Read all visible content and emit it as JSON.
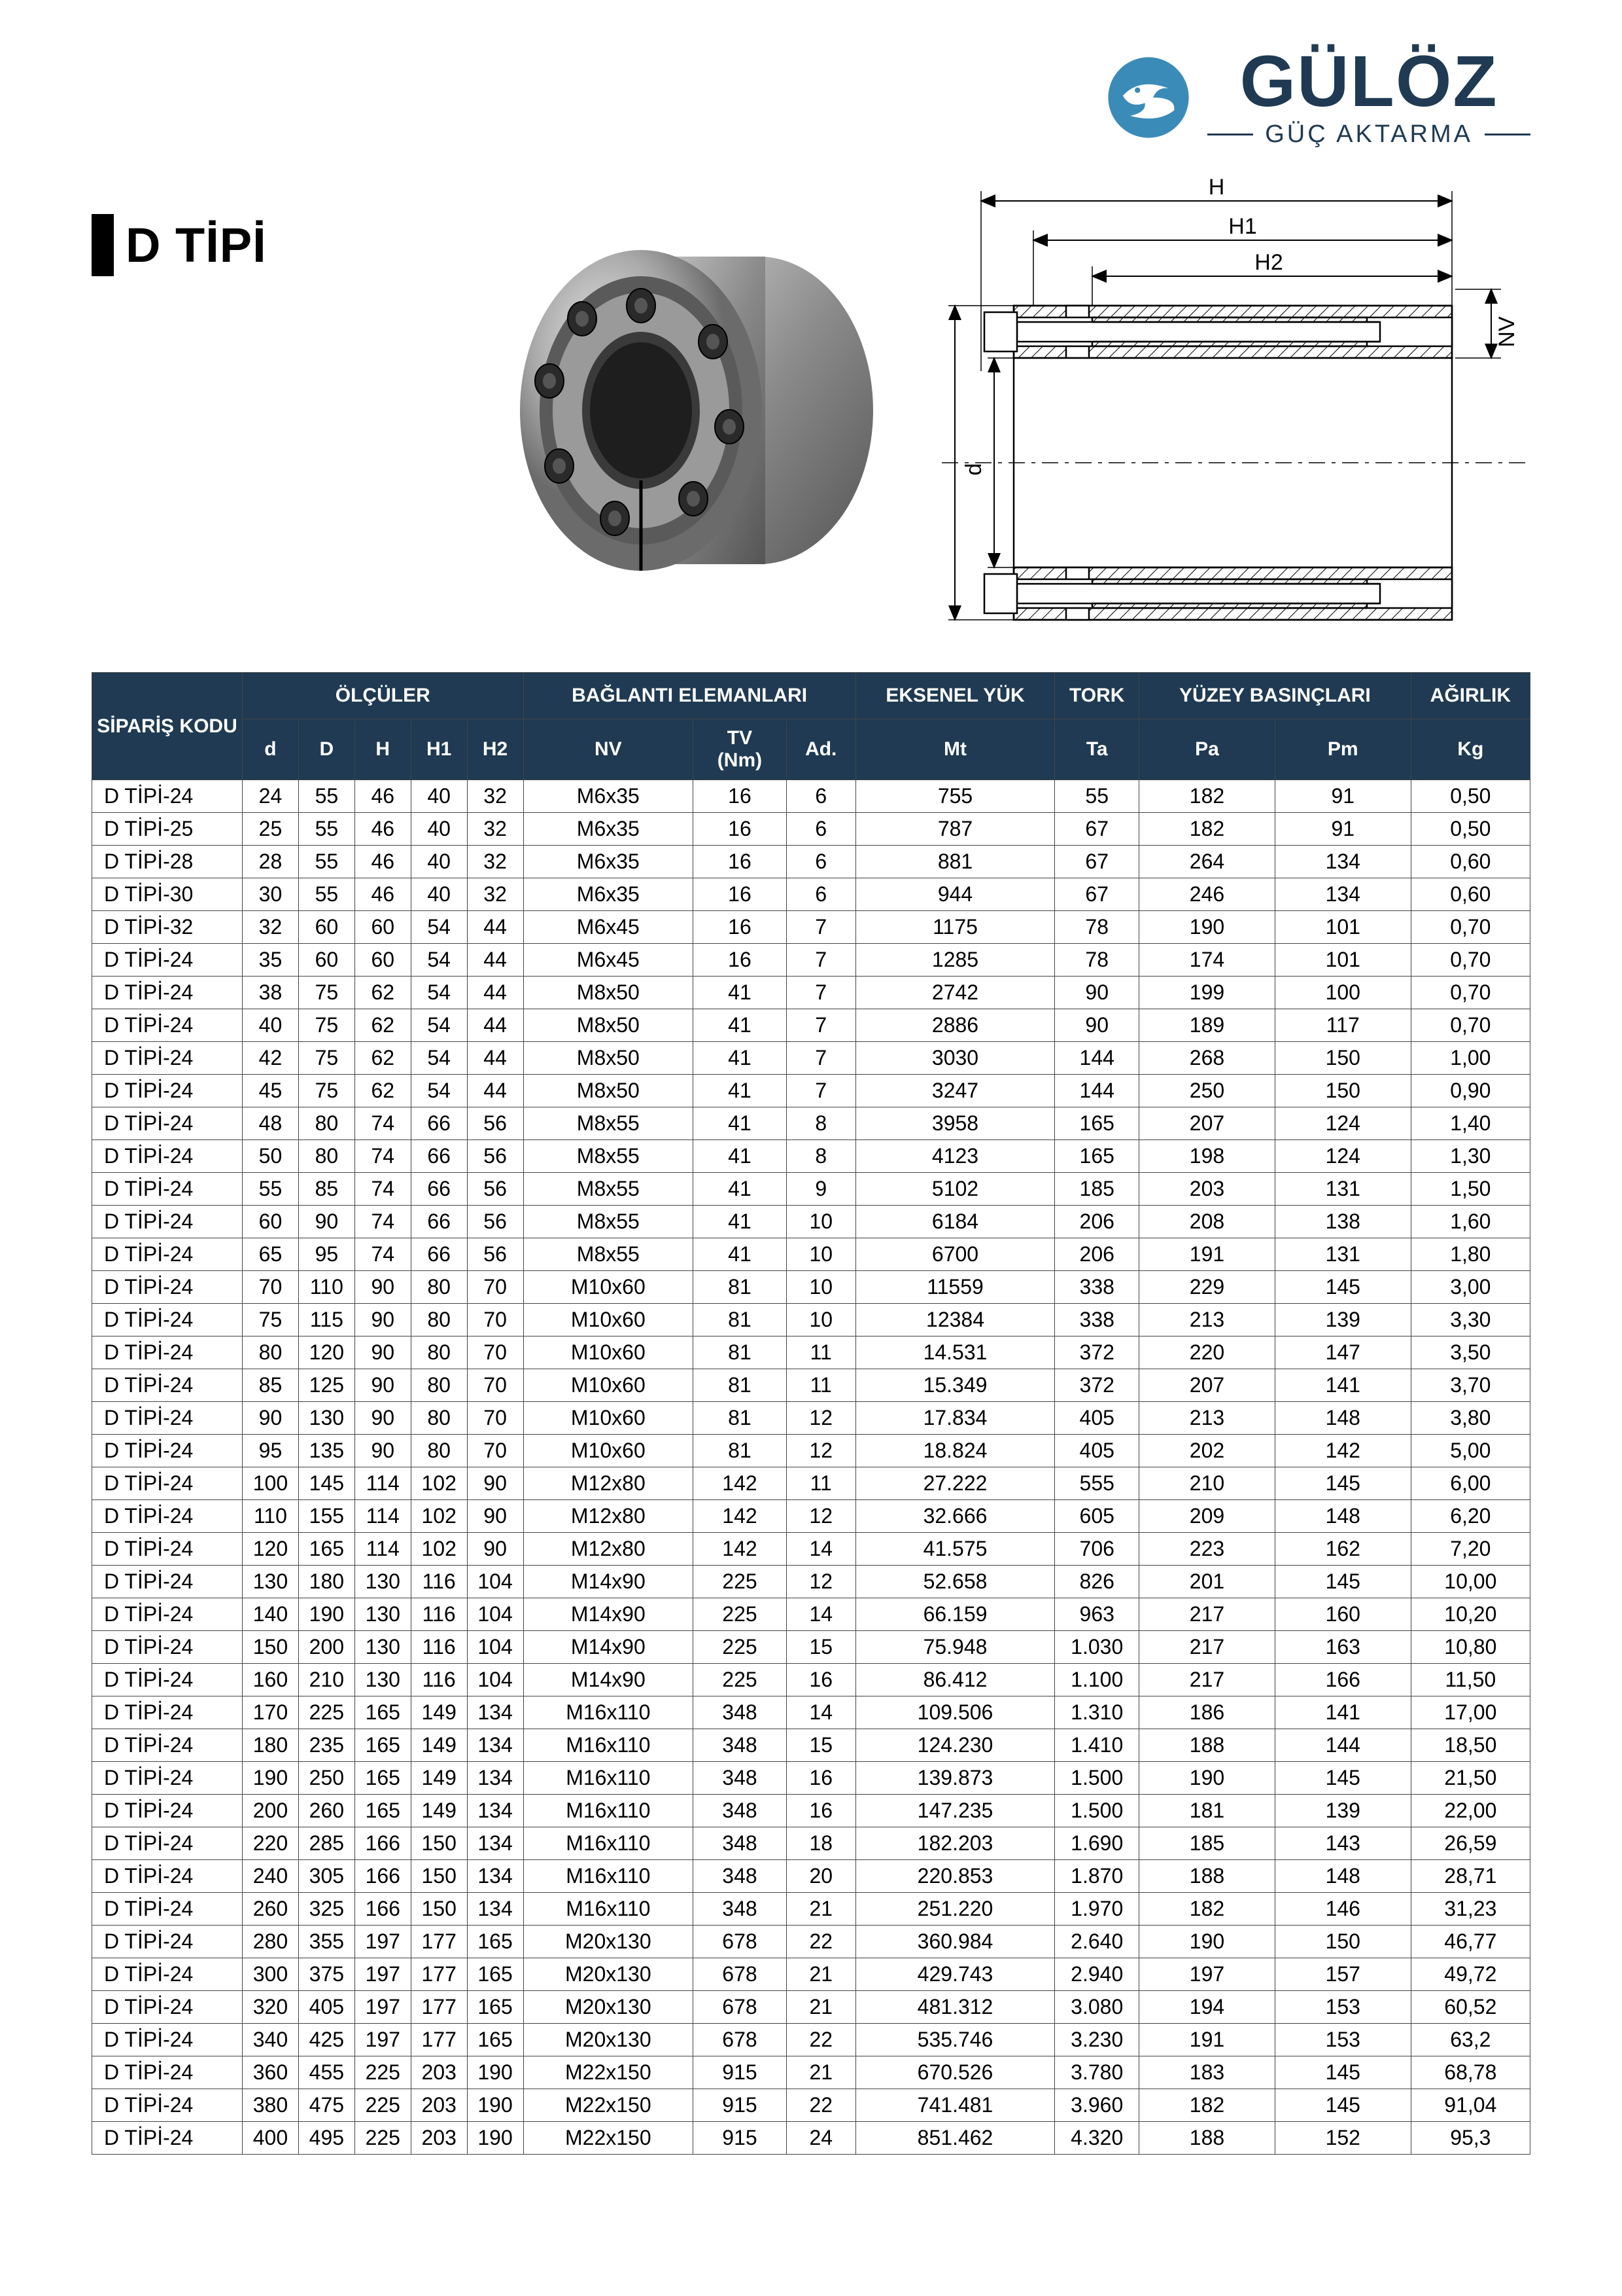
{
  "logo": {
    "brand": "GÜLÖZ",
    "tagline": "GÜÇ AKTARMA",
    "icon_color": "#3b8bb8",
    "text_color": "#1f3a52"
  },
  "title": "D TİPİ",
  "diagram_labels": {
    "H": "H",
    "H1": "H1",
    "H2": "H2",
    "D": "D",
    "d": "d",
    "NV": "NV"
  },
  "table": {
    "header_bg": "#1f3a52",
    "header_fg": "#ffffff",
    "groups": [
      {
        "label": "SİPARİŞ KODU",
        "span": 1
      },
      {
        "label": "ÖLÇÜLER",
        "span": 5
      },
      {
        "label": "BAĞLANTI ELEMANLARI",
        "span": 3
      },
      {
        "label": "EKSENEL YÜK",
        "span": 1
      },
      {
        "label": "TORK",
        "span": 1
      },
      {
        "label": "YÜZEY BASINÇLARI",
        "span": 2
      },
      {
        "label": "AĞIRLIK",
        "span": 1
      }
    ],
    "columns": [
      "d",
      "D",
      "H",
      "H1",
      "H2",
      "NV",
      "TV (Nm)",
      "Ad.",
      "Mt",
      "Ta",
      "Pa",
      "Pm",
      "Kg"
    ],
    "rows": [
      [
        "D TİPİ-24",
        "24",
        "55",
        "46",
        "40",
        "32",
        "M6x35",
        "16",
        "6",
        "755",
        "55",
        "182",
        "91",
        "0,50"
      ],
      [
        "D TİPİ-25",
        "25",
        "55",
        "46",
        "40",
        "32",
        "M6x35",
        "16",
        "6",
        "787",
        "67",
        "182",
        "91",
        "0,50"
      ],
      [
        "D TİPİ-28",
        "28",
        "55",
        "46",
        "40",
        "32",
        "M6x35",
        "16",
        "6",
        "881",
        "67",
        "264",
        "134",
        "0,60"
      ],
      [
        "D TİPİ-30",
        "30",
        "55",
        "46",
        "40",
        "32",
        "M6x35",
        "16",
        "6",
        "944",
        "67",
        "246",
        "134",
        "0,60"
      ],
      [
        "D TİPİ-32",
        "32",
        "60",
        "60",
        "54",
        "44",
        "M6x45",
        "16",
        "7",
        "1175",
        "78",
        "190",
        "101",
        "0,70"
      ],
      [
        "D TİPİ-24",
        "35",
        "60",
        "60",
        "54",
        "44",
        "M6x45",
        "16",
        "7",
        "1285",
        "78",
        "174",
        "101",
        "0,70"
      ],
      [
        "D TİPİ-24",
        "38",
        "75",
        "62",
        "54",
        "44",
        "M8x50",
        "41",
        "7",
        "2742",
        "90",
        "199",
        "100",
        "0,70"
      ],
      [
        "D TİPİ-24",
        "40",
        "75",
        "62",
        "54",
        "44",
        "M8x50",
        "41",
        "7",
        "2886",
        "90",
        "189",
        "117",
        "0,70"
      ],
      [
        "D TİPİ-24",
        "42",
        "75",
        "62",
        "54",
        "44",
        "M8x50",
        "41",
        "7",
        "3030",
        "144",
        "268",
        "150",
        "1,00"
      ],
      [
        "D TİPİ-24",
        "45",
        "75",
        "62",
        "54",
        "44",
        "M8x50",
        "41",
        "7",
        "3247",
        "144",
        "250",
        "150",
        "0,90"
      ],
      [
        "D TİPİ-24",
        "48",
        "80",
        "74",
        "66",
        "56",
        "M8x55",
        "41",
        "8",
        "3958",
        "165",
        "207",
        "124",
        "1,40"
      ],
      [
        "D TİPİ-24",
        "50",
        "80",
        "74",
        "66",
        "56",
        "M8x55",
        "41",
        "8",
        "4123",
        "165",
        "198",
        "124",
        "1,30"
      ],
      [
        "D TİPİ-24",
        "55",
        "85",
        "74",
        "66",
        "56",
        "M8x55",
        "41",
        "9",
        "5102",
        "185",
        "203",
        "131",
        "1,50"
      ],
      [
        "D TİPİ-24",
        "60",
        "90",
        "74",
        "66",
        "56",
        "M8x55",
        "41",
        "10",
        "6184",
        "206",
        "208",
        "138",
        "1,60"
      ],
      [
        "D TİPİ-24",
        "65",
        "95",
        "74",
        "66",
        "56",
        "M8x55",
        "41",
        "10",
        "6700",
        "206",
        "191",
        "131",
        "1,80"
      ],
      [
        "D TİPİ-24",
        "70",
        "110",
        "90",
        "80",
        "70",
        "M10x60",
        "81",
        "10",
        "11559",
        "338",
        "229",
        "145",
        "3,00"
      ],
      [
        "D TİPİ-24",
        "75",
        "115",
        "90",
        "80",
        "70",
        "M10x60",
        "81",
        "10",
        "12384",
        "338",
        "213",
        "139",
        "3,30"
      ],
      [
        "D TİPİ-24",
        "80",
        "120",
        "90",
        "80",
        "70",
        "M10x60",
        "81",
        "11",
        "14.531",
        "372",
        "220",
        "147",
        "3,50"
      ],
      [
        "D TİPİ-24",
        "85",
        "125",
        "90",
        "80",
        "70",
        "M10x60",
        "81",
        "11",
        "15.349",
        "372",
        "207",
        "141",
        "3,70"
      ],
      [
        "D TİPİ-24",
        "90",
        "130",
        "90",
        "80",
        "70",
        "M10x60",
        "81",
        "12",
        "17.834",
        "405",
        "213",
        "148",
        "3,80"
      ],
      [
        "D TİPİ-24",
        "95",
        "135",
        "90",
        "80",
        "70",
        "M10x60",
        "81",
        "12",
        "18.824",
        "405",
        "202",
        "142",
        "5,00"
      ],
      [
        "D TİPİ-24",
        "100",
        "145",
        "114",
        "102",
        "90",
        "M12x80",
        "142",
        "11",
        "27.222",
        "555",
        "210",
        "145",
        "6,00"
      ],
      [
        "D TİPİ-24",
        "110",
        "155",
        "114",
        "102",
        "90",
        "M12x80",
        "142",
        "12",
        "32.666",
        "605",
        "209",
        "148",
        "6,20"
      ],
      [
        "D TİPİ-24",
        "120",
        "165",
        "114",
        "102",
        "90",
        "M12x80",
        "142",
        "14",
        "41.575",
        "706",
        "223",
        "162",
        "7,20"
      ],
      [
        "D TİPİ-24",
        "130",
        "180",
        "130",
        "116",
        "104",
        "M14x90",
        "225",
        "12",
        "52.658",
        "826",
        "201",
        "145",
        "10,00"
      ],
      [
        "D TİPİ-24",
        "140",
        "190",
        "130",
        "116",
        "104",
        "M14x90",
        "225",
        "14",
        "66.159",
        "963",
        "217",
        "160",
        "10,20"
      ],
      [
        "D TİPİ-24",
        "150",
        "200",
        "130",
        "116",
        "104",
        "M14x90",
        "225",
        "15",
        "75.948",
        "1.030",
        "217",
        "163",
        "10,80"
      ],
      [
        "D TİPİ-24",
        "160",
        "210",
        "130",
        "116",
        "104",
        "M14x90",
        "225",
        "16",
        "86.412",
        "1.100",
        "217",
        "166",
        "11,50"
      ],
      [
        "D TİPİ-24",
        "170",
        "225",
        "165",
        "149",
        "134",
        "M16x110",
        "348",
        "14",
        "109.506",
        "1.310",
        "186",
        "141",
        "17,00"
      ],
      [
        "D TİPİ-24",
        "180",
        "235",
        "165",
        "149",
        "134",
        "M16x110",
        "348",
        "15",
        "124.230",
        "1.410",
        "188",
        "144",
        "18,50"
      ],
      [
        "D TİPİ-24",
        "190",
        "250",
        "165",
        "149",
        "134",
        "M16x110",
        "348",
        "16",
        "139.873",
        "1.500",
        "190",
        "145",
        "21,50"
      ],
      [
        "D TİPİ-24",
        "200",
        "260",
        "165",
        "149",
        "134",
        "M16x110",
        "348",
        "16",
        "147.235",
        "1.500",
        "181",
        "139",
        "22,00"
      ],
      [
        "D TİPİ-24",
        "220",
        "285",
        "166",
        "150",
        "134",
        "M16x110",
        "348",
        "18",
        "182.203",
        "1.690",
        "185",
        "143",
        "26,59"
      ],
      [
        "D TİPİ-24",
        "240",
        "305",
        "166",
        "150",
        "134",
        "M16x110",
        "348",
        "20",
        "220.853",
        "1.870",
        "188",
        "148",
        "28,71"
      ],
      [
        "D TİPİ-24",
        "260",
        "325",
        "166",
        "150",
        "134",
        "M16x110",
        "348",
        "21",
        "251.220",
        "1.970",
        "182",
        "146",
        "31,23"
      ],
      [
        "D TİPİ-24",
        "280",
        "355",
        "197",
        "177",
        "165",
        "M20x130",
        "678",
        "22",
        "360.984",
        "2.640",
        "190",
        "150",
        "46,77"
      ],
      [
        "D TİPİ-24",
        "300",
        "375",
        "197",
        "177",
        "165",
        "M20x130",
        "678",
        "21",
        "429.743",
        "2.940",
        "197",
        "157",
        "49,72"
      ],
      [
        "D TİPİ-24",
        "320",
        "405",
        "197",
        "177",
        "165",
        "M20x130",
        "678",
        "21",
        "481.312",
        "3.080",
        "194",
        "153",
        "60,52"
      ],
      [
        "D TİPİ-24",
        "340",
        "425",
        "197",
        "177",
        "165",
        "M20x130",
        "678",
        "22",
        "535.746",
        "3.230",
        "191",
        "153",
        "63,2"
      ],
      [
        "D TİPİ-24",
        "360",
        "455",
        "225",
        "203",
        "190",
        "M22x150",
        "915",
        "21",
        "670.526",
        "3.780",
        "183",
        "145",
        "68,78"
      ],
      [
        "D TİPİ-24",
        "380",
        "475",
        "225",
        "203",
        "190",
        "M22x150",
        "915",
        "22",
        "741.481",
        "3.960",
        "182",
        "145",
        "91,04"
      ],
      [
        "D TİPİ-24",
        "400",
        "495",
        "225",
        "203",
        "190",
        "M22x150",
        "915",
        "24",
        "851.462",
        "4.320",
        "188",
        "152",
        "95,3"
      ]
    ]
  }
}
